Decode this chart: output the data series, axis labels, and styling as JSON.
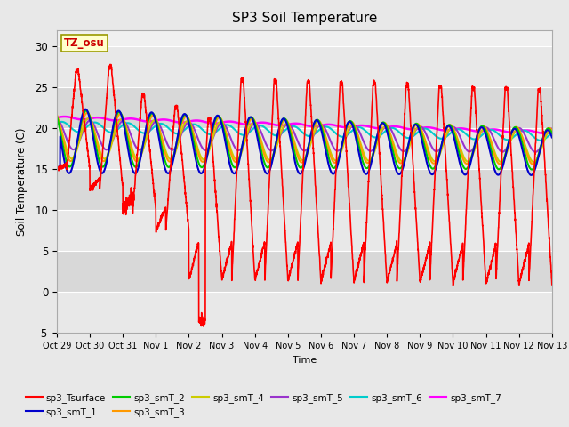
{
  "title": "SP3 Soil Temperature",
  "ylabel": "Soil Temperature (C)",
  "xlabel": "Time",
  "ylim": [
    -5,
    32
  ],
  "annotation_text": "TZ_osu",
  "annotation_color": "#cc0000",
  "annotation_bg": "#ffffcc",
  "annotation_border": "#999900",
  "x_tick_labels": [
    "Oct 29",
    "Oct 30",
    "Oct 31",
    "Nov 1",
    "Nov 2",
    "Nov 3",
    "Nov 4",
    "Nov 5",
    "Nov 6",
    "Nov 7",
    "Nov 8",
    "Nov 9",
    "Nov 10",
    "Nov 11",
    "Nov 12",
    "Nov 13"
  ],
  "series_colors": {
    "sp3_Tsurface": "#ff0000",
    "sp3_smT_1": "#0000cc",
    "sp3_smT_2": "#00cc00",
    "sp3_smT_3": "#ff9900",
    "sp3_smT_4": "#cccc00",
    "sp3_smT_5": "#9933cc",
    "sp3_smT_6": "#00cccc",
    "sp3_smT_7": "#ff00ff"
  },
  "background_color": "#e8e8e8",
  "plot_bg": "#f0f0f0",
  "grid_color": "#ffffff",
  "title_fontsize": 11,
  "num_days": 15
}
